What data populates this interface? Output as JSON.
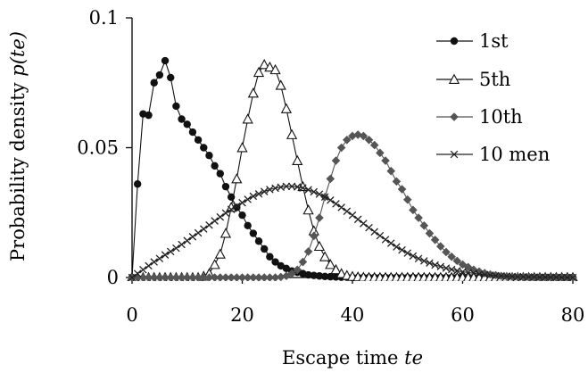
{
  "chart_data": {
    "type": "line",
    "xlabel": "Escape time",
    "xlabel_var": "te",
    "ylabel": "Probability density",
    "ylabel_var": "p(te)",
    "xlim": [
      0,
      80
    ],
    "ylim": [
      0,
      0.1
    ],
    "x_ticks": [
      0,
      20,
      40,
      60,
      80
    ],
    "x_tick_labels": [
      "0",
      "20",
      "40",
      "60",
      "80"
    ],
    "y_ticks": [
      0,
      0.05,
      0.1
    ],
    "y_tick_labels": [
      "0",
      "0.05",
      "0.1"
    ],
    "grid": false,
    "legend_position": "top-right",
    "series": [
      {
        "name": "1st",
        "marker": "filled-circle",
        "color": "#111111",
        "x": [
          0,
          1,
          2,
          3,
          4,
          5,
          6,
          7,
          8,
          9,
          10,
          11,
          12,
          13,
          14,
          15,
          16,
          17,
          18,
          19,
          20,
          21,
          22,
          23,
          24,
          25,
          26,
          27,
          28,
          29,
          30,
          31,
          32,
          33,
          34,
          35,
          36,
          37,
          38,
          39,
          40,
          41,
          42,
          43,
          44,
          45,
          46,
          47,
          48,
          49,
          50,
          51,
          52,
          53,
          54,
          55,
          56,
          57,
          58,
          59,
          60,
          61,
          62,
          63,
          64,
          65,
          66,
          67,
          68,
          69,
          70,
          71,
          72,
          73,
          74,
          75,
          76,
          77,
          78,
          79,
          80
        ],
        "y": [
          0,
          0.036,
          0.063,
          0.0625,
          0.075,
          0.078,
          0.0835,
          0.077,
          0.066,
          0.061,
          0.059,
          0.056,
          0.053,
          0.05,
          0.047,
          0.043,
          0.04,
          0.035,
          0.031,
          0.027,
          0.024,
          0.02,
          0.017,
          0.014,
          0.011,
          0.008,
          0.006,
          0.0045,
          0.0035,
          0.0025,
          0.002,
          0.0015,
          0.001,
          0.0008,
          0.0006,
          0.0004,
          0.0003,
          0.0002,
          0.0001,
          0.0001,
          0,
          0,
          0,
          0,
          0,
          0,
          0,
          0,
          0,
          0,
          0,
          0,
          0,
          0,
          0,
          0,
          0,
          0,
          0,
          0,
          0,
          0,
          0,
          0,
          0,
          0,
          0,
          0,
          0,
          0,
          0,
          0,
          0,
          0,
          0,
          0,
          0,
          0,
          0,
          0,
          0
        ]
      },
      {
        "name": "5th",
        "marker": "open-triangle",
        "color": "#111111",
        "x": [
          0,
          1,
          2,
          3,
          4,
          5,
          6,
          7,
          8,
          9,
          10,
          11,
          12,
          13,
          14,
          15,
          16,
          17,
          18,
          19,
          20,
          21,
          22,
          23,
          24,
          25,
          26,
          27,
          28,
          29,
          30,
          31,
          32,
          33,
          34,
          35,
          36,
          37,
          38,
          39,
          40,
          41,
          42,
          43,
          44,
          45,
          46,
          47,
          48,
          49,
          50,
          51,
          52,
          53,
          54,
          55,
          56,
          57,
          58,
          59,
          60,
          61,
          62,
          63,
          64,
          65,
          66,
          67,
          68,
          69,
          70,
          71,
          72,
          73,
          74,
          75,
          76,
          77,
          78,
          79,
          80
        ],
        "y": [
          0,
          0,
          0,
          0,
          0,
          0,
          0,
          0,
          0,
          0,
          0,
          0,
          0,
          0.0005,
          0.0015,
          0.005,
          0.009,
          0.017,
          0.027,
          0.038,
          0.05,
          0.061,
          0.071,
          0.079,
          0.082,
          0.081,
          0.08,
          0.074,
          0.065,
          0.055,
          0.045,
          0.035,
          0.026,
          0.018,
          0.012,
          0.008,
          0.005,
          0.003,
          0.0015,
          0.0008,
          0.0004,
          0.0002,
          0.0001,
          0,
          0,
          0,
          0,
          0,
          0,
          0,
          0,
          0,
          0,
          0,
          0,
          0,
          0,
          0,
          0,
          0,
          0,
          0,
          0,
          0,
          0,
          0,
          0,
          0,
          0,
          0,
          0,
          0,
          0,
          0,
          0,
          0,
          0,
          0,
          0,
          0,
          0
        ]
      },
      {
        "name": "10th",
        "marker": "filled-diamond",
        "color": "#555555",
        "x": [
          0,
          1,
          2,
          3,
          4,
          5,
          6,
          7,
          8,
          9,
          10,
          11,
          12,
          13,
          14,
          15,
          16,
          17,
          18,
          19,
          20,
          21,
          22,
          23,
          24,
          25,
          26,
          27,
          28,
          29,
          30,
          31,
          32,
          33,
          34,
          35,
          36,
          37,
          38,
          39,
          40,
          41,
          42,
          43,
          44,
          45,
          46,
          47,
          48,
          49,
          50,
          51,
          52,
          53,
          54,
          55,
          56,
          57,
          58,
          59,
          60,
          61,
          62,
          63,
          64,
          65,
          66,
          67,
          68,
          69,
          70,
          71,
          72,
          73,
          74,
          75,
          76,
          77,
          78,
          79,
          80
        ],
        "y": [
          0,
          0,
          0,
          0,
          0,
          0,
          0,
          0,
          0,
          0,
          0,
          0,
          0,
          0,
          0,
          0,
          0,
          0,
          0,
          0,
          0,
          0,
          0,
          0,
          0,
          0,
          0,
          0.0002,
          0.0006,
          0.0015,
          0.003,
          0.006,
          0.01,
          0.016,
          0.023,
          0.031,
          0.038,
          0.045,
          0.05,
          0.053,
          0.0545,
          0.055,
          0.0545,
          0.053,
          0.051,
          0.048,
          0.045,
          0.041,
          0.037,
          0.034,
          0.03,
          0.026,
          0.023,
          0.02,
          0.017,
          0.0145,
          0.012,
          0.0098,
          0.008,
          0.0064,
          0.005,
          0.004,
          0.003,
          0.0023,
          0.0017,
          0.0012,
          0.0009,
          0.0006,
          0.0004,
          0.0003,
          0.0002,
          0.0001,
          0.0001,
          0,
          0,
          0,
          0,
          0,
          0,
          0,
          0
        ]
      },
      {
        "name": "10 men",
        "marker": "cross",
        "color": "#222222",
        "x": [
          0,
          1,
          2,
          3,
          4,
          5,
          6,
          7,
          8,
          9,
          10,
          11,
          12,
          13,
          14,
          15,
          16,
          17,
          18,
          19,
          20,
          21,
          22,
          23,
          24,
          25,
          26,
          27,
          28,
          29,
          30,
          31,
          32,
          33,
          34,
          35,
          36,
          37,
          38,
          39,
          40,
          41,
          42,
          43,
          44,
          45,
          46,
          47,
          48,
          49,
          50,
          51,
          52,
          53,
          54,
          55,
          56,
          57,
          58,
          59,
          60,
          61,
          62,
          63,
          64,
          65,
          66,
          67,
          68,
          69,
          70,
          71,
          72,
          73,
          74,
          75,
          76,
          77,
          78,
          79,
          80
        ],
        "y": [
          0,
          0.0015,
          0.003,
          0.0045,
          0.006,
          0.0073,
          0.0087,
          0.01,
          0.0113,
          0.0127,
          0.0142,
          0.0157,
          0.0172,
          0.0187,
          0.0202,
          0.0218,
          0.0233,
          0.0248,
          0.0262,
          0.0275,
          0.0288,
          0.0301,
          0.0313,
          0.0322,
          0.0331,
          0.0339,
          0.0344,
          0.0348,
          0.0351,
          0.0351,
          0.0349,
          0.0345,
          0.0338,
          0.033,
          0.0321,
          0.031,
          0.0298,
          0.0284,
          0.027,
          0.0255,
          0.024,
          0.0224,
          0.0208,
          0.0192,
          0.0176,
          0.0161,
          0.0146,
          0.0132,
          0.0118,
          0.0106,
          0.0094,
          0.0083,
          0.0073,
          0.0064,
          0.0056,
          0.0048,
          0.0042,
          0.0036,
          0.0031,
          0.0026,
          0.0022,
          0.0019,
          0.0016,
          0.0013,
          0.0011,
          0.0009,
          0.0007,
          0.0006,
          0.0005,
          0.0004,
          0.0003,
          0.0003,
          0.0002,
          0.0002,
          0.0001,
          0.0001,
          0.0001,
          0.0001,
          0,
          0,
          0
        ]
      }
    ]
  }
}
